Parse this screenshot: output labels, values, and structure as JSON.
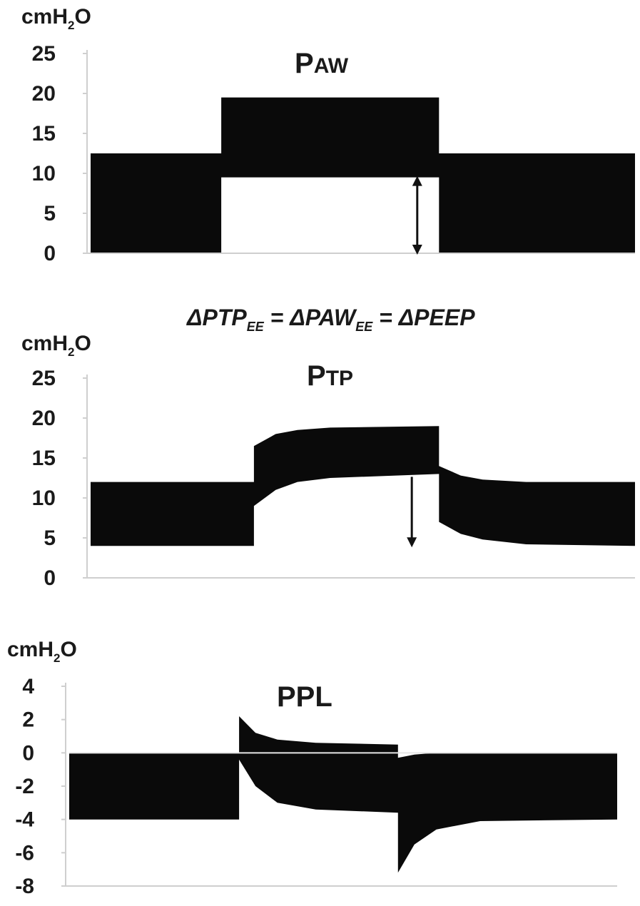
{
  "unit": {
    "main": "cmH",
    "sub": "2",
    "tail": "O"
  },
  "annotation": {
    "delta": "Δ",
    "ptp": "PTP",
    "ptp_sub": "EE",
    "eq1": " = Δ",
    "paw": "PAW",
    "paw_sub": "EE",
    "eq2": " = Δ",
    "peep": "PEEP"
  },
  "chart_data": [
    {
      "type": "area",
      "title": "PAW",
      "title_parts": {
        "first": "P",
        "rest": "AW"
      },
      "ylabel": "cmH2O",
      "ylim": [
        0,
        25
      ],
      "yticks": [
        "0",
        "5",
        "10",
        "15",
        "20",
        "25"
      ],
      "grid": false,
      "x": [
        0,
        0.24,
        0.24,
        0.46,
        0.46,
        0.64,
        0.64,
        0.72,
        0.72,
        1
      ],
      "series": [
        {
          "role": "upper",
          "values": [
            12.5,
            12.5,
            19.5,
            19.5,
            19.5,
            19.5,
            12.5,
            12.5,
            12.5,
            12.5
          ]
        },
        {
          "role": "lower",
          "values": [
            0,
            0,
            9.5,
            9.5,
            9.5,
            9.5,
            0,
            0,
            0,
            0
          ]
        }
      ],
      "marker": {
        "type": "double-arrow",
        "x": 0.6,
        "from": 9.5,
        "to": 0
      }
    },
    {
      "type": "area",
      "title": "PTP",
      "title_parts": {
        "first": "P",
        "rest": "TP"
      },
      "ylabel": "cmH2O",
      "ylim": [
        0,
        25
      ],
      "yticks": [
        "0",
        "5",
        "10",
        "15",
        "20",
        "25"
      ],
      "grid": false,
      "x": [
        0,
        0.3,
        0.3,
        0.34,
        0.38,
        0.44,
        0.64,
        0.64,
        0.68,
        0.72,
        0.8,
        1
      ],
      "series": [
        {
          "role": "upper",
          "values": [
            12,
            12,
            16.5,
            18,
            18.5,
            18.8,
            19,
            14,
            12.8,
            12.3,
            12,
            12
          ]
        },
        {
          "role": "lower",
          "values": [
            4,
            4,
            9,
            11,
            12,
            12.5,
            13,
            7,
            5.5,
            4.8,
            4.2,
            4
          ]
        }
      ],
      "marker": {
        "type": "arrow-down",
        "x": 0.59,
        "from": 13,
        "to": 4
      }
    },
    {
      "type": "area",
      "title": "PPL",
      "title_parts": {
        "first": "PPL",
        "rest": ""
      },
      "ylabel": "cmH2O",
      "ylim": [
        -8,
        4
      ],
      "yticks": [
        "-8",
        "-6",
        "-4",
        "-2",
        "0",
        "2",
        "4"
      ],
      "grid": false,
      "zero_line": true,
      "x": [
        0,
        0.31,
        0.31,
        0.34,
        0.38,
        0.45,
        0.6,
        0.6,
        0.63,
        0.67,
        0.75,
        1
      ],
      "series": [
        {
          "role": "upper",
          "values": [
            0,
            0,
            2.2,
            1.2,
            0.8,
            0.6,
            0.5,
            -0.3,
            -0.1,
            0,
            0,
            0
          ]
        },
        {
          "role": "lower",
          "values": [
            -4,
            -4,
            -0.4,
            -2,
            -3,
            -3.4,
            -3.6,
            -7.2,
            -5.5,
            -4.6,
            -4.1,
            -4
          ]
        }
      ]
    }
  ]
}
